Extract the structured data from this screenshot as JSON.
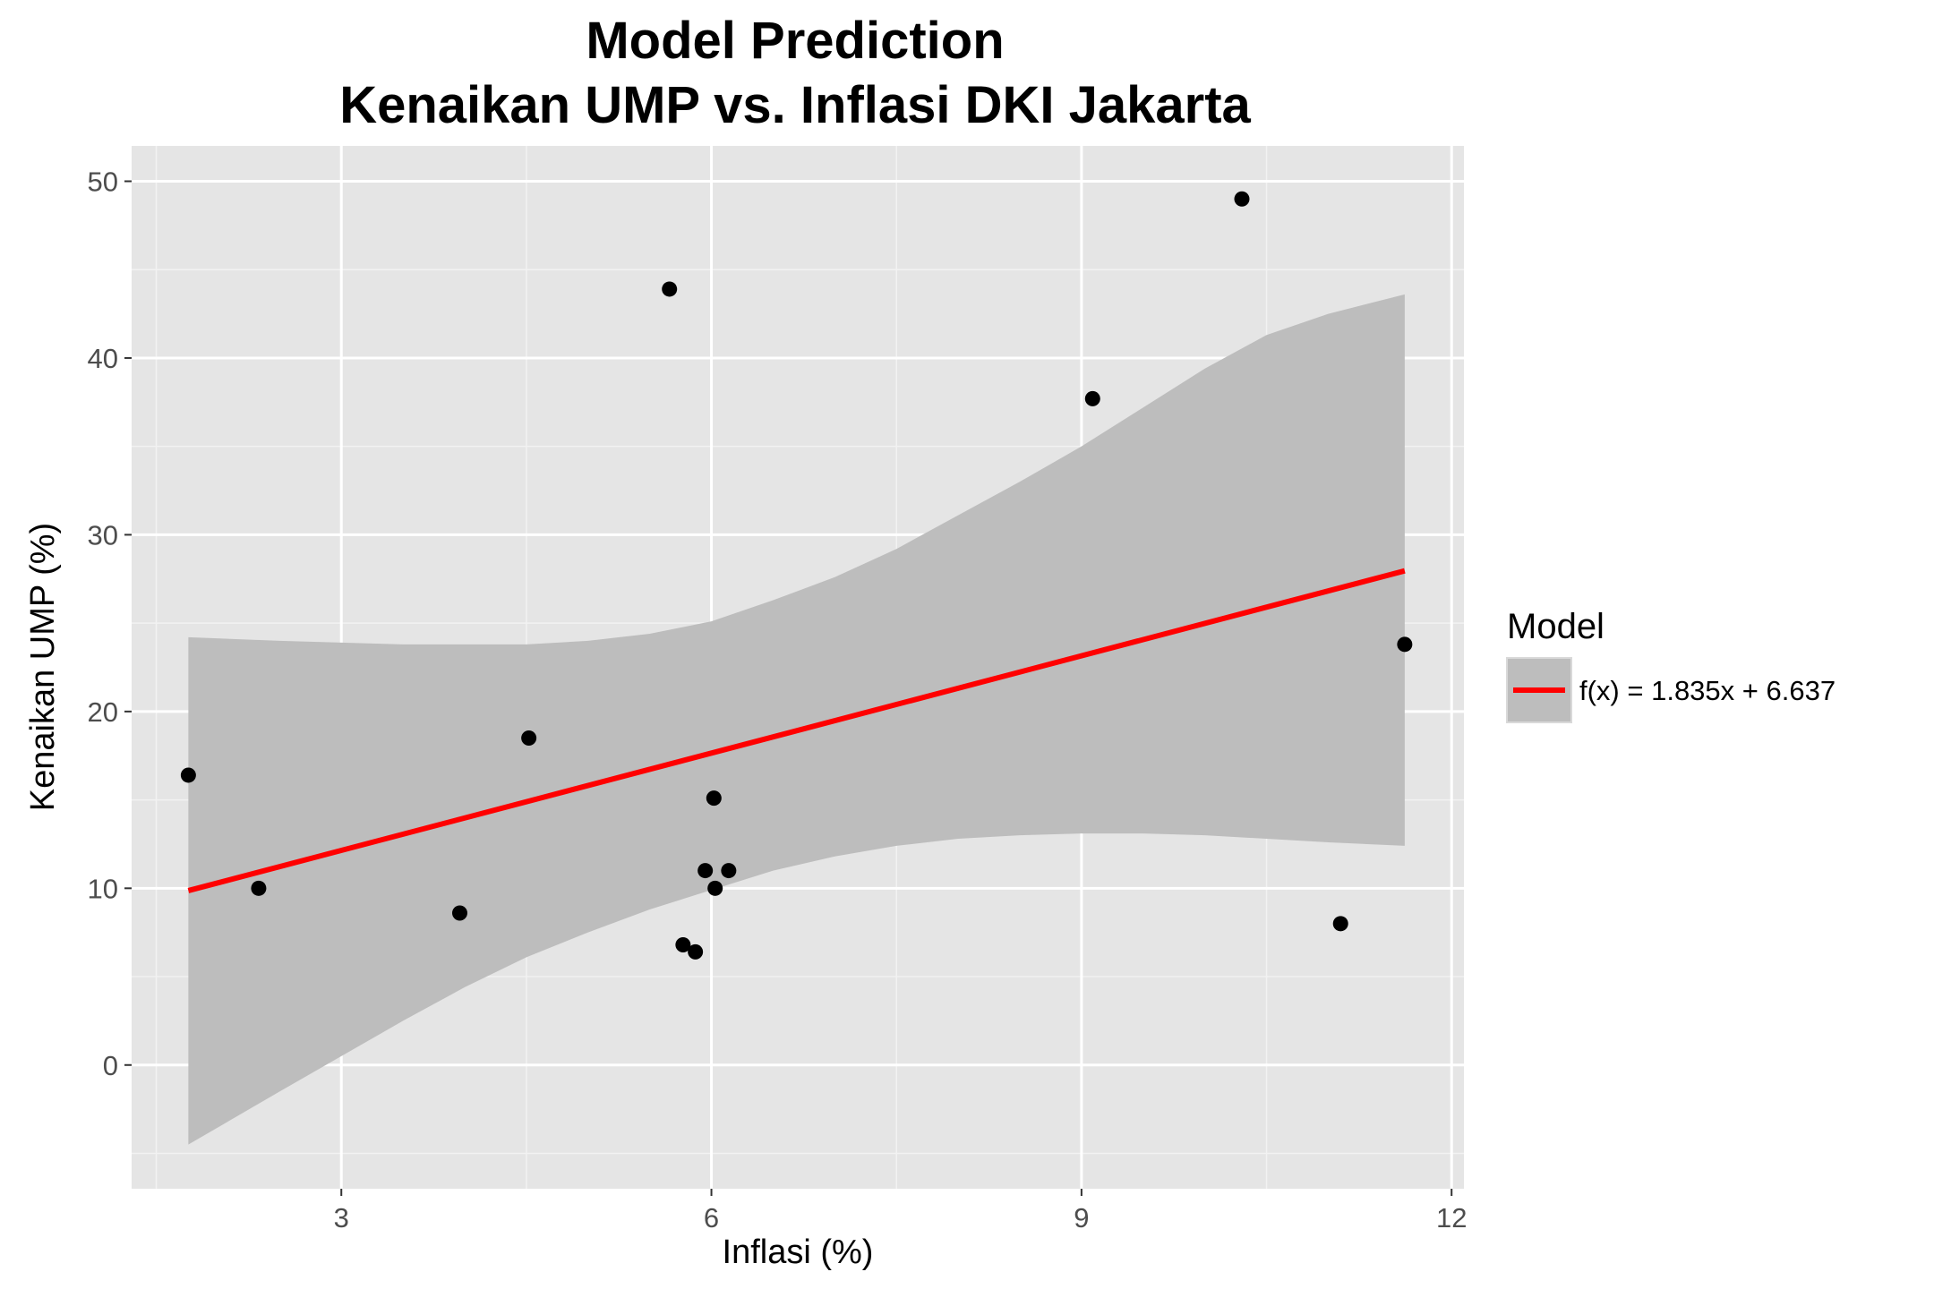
{
  "chart_data": {
    "type": "scatter",
    "title": "Model Prediction",
    "subtitle": "Kenaikan UMP vs. Inflasi DKI Jakarta",
    "xlabel": "Inflasi (%)",
    "ylabel": "Kenaikan UMP (%)",
    "xlim": [
      1.3,
      12.1
    ],
    "ylim": [
      -7,
      52
    ],
    "x_ticks": [
      3,
      6,
      9,
      12
    ],
    "x_tick_labels": [
      "3",
      "6",
      "9",
      "12"
    ],
    "y_ticks": [
      0,
      10,
      20,
      30,
      40,
      50
    ],
    "y_tick_labels": [
      "0",
      "10",
      "20",
      "30",
      "40",
      "50"
    ],
    "grid": true,
    "legend_position": "right",
    "series": [
      {
        "kind": "points",
        "x": [
          1.76,
          2.33,
          3.96,
          4.52,
          5.66,
          5.77,
          5.87,
          5.95,
          6.02,
          6.03,
          6.14,
          9.09,
          10.3,
          11.1,
          11.62
        ],
        "y": [
          16.4,
          10.0,
          8.6,
          18.5,
          43.9,
          6.8,
          6.4,
          11.0,
          15.1,
          10.0,
          11.0,
          37.7,
          49.0,
          8.0,
          23.8
        ],
        "color": "#000000"
      },
      {
        "kind": "fit",
        "name": "f(x) = 1.835x + 6.637",
        "slope": 1.835,
        "intercept": 6.637,
        "color": "#ff0000",
        "band_color": "#bdbdbd",
        "x": [
          1.76,
          2.5,
          3.0,
          3.5,
          4.0,
          4.5,
          5.0,
          5.5,
          6.0,
          6.5,
          7.0,
          7.5,
          8.0,
          8.5,
          9.0,
          9.5,
          10.0,
          10.5,
          11.0,
          11.62
        ],
        "band_upper": [
          24.2,
          24.0,
          23.9,
          23.8,
          23.8,
          23.8,
          24.0,
          24.4,
          25.1,
          26.3,
          27.6,
          29.2,
          31.1,
          33.0,
          35.0,
          37.2,
          39.4,
          41.3,
          42.5,
          43.6
        ],
        "band_lower": [
          -4.5,
          -1.5,
          0.5,
          2.5,
          4.4,
          6.1,
          7.5,
          8.8,
          9.9,
          11.0,
          11.8,
          12.4,
          12.8,
          13.0,
          13.1,
          13.1,
          13.0,
          12.8,
          12.6,
          12.4
        ]
      }
    ],
    "legend": {
      "title": "Model",
      "entries": [
        "f(x) = 1.835x + 6.637"
      ]
    }
  }
}
